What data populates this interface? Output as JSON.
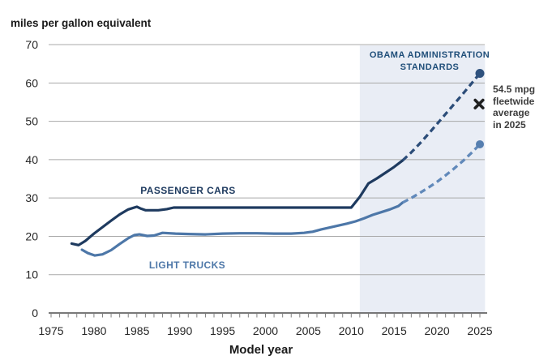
{
  "chart_data": {
    "type": "line",
    "title": "miles per gallon equivalent",
    "xlabel": "Model year",
    "xlim": [
      1975,
      2026
    ],
    "ylim": [
      0,
      70
    ],
    "x_ticks": [
      1975,
      1980,
      1985,
      1990,
      1995,
      2000,
      2005,
      2010,
      2015,
      2020,
      2025
    ],
    "x_minor_tick_step": 1,
    "y_ticks": [
      0,
      10,
      20,
      30,
      40,
      50,
      60,
      70
    ],
    "grid": "horizontal",
    "legend_position": "inline-labels",
    "colors": {
      "background": "#ffffff",
      "grid": "#a9a9a9",
      "axis": "#4d4d4d",
      "tick": "#7f7f7f",
      "annotation_marker": "#1f1f1f"
    },
    "shaded_region": {
      "x_start": 2011,
      "x_end": 2025.6,
      "color": "#e9edf5",
      "label_lines": [
        "OBAMA ADMINISTRATION",
        "STANDARDS"
      ]
    },
    "series": [
      {
        "name": "PASSENGER CARS",
        "color": "#1e3a5f",
        "dashed_color": "#2c4d79",
        "solid": [
          [
            1977.4,
            18.1
          ],
          [
            1978.2,
            17.7
          ],
          [
            1979,
            18.8
          ],
          [
            1980,
            20.7
          ],
          [
            1981,
            22.4
          ],
          [
            1982,
            24.1
          ],
          [
            1983,
            25.7
          ],
          [
            1984,
            27.0
          ],
          [
            1985,
            27.7
          ],
          [
            1985.5,
            27.2
          ],
          [
            1986,
            26.8
          ],
          [
            1987.5,
            26.8
          ],
          [
            1988.5,
            27.1
          ],
          [
            1989.3,
            27.5
          ],
          [
            2010,
            27.5
          ],
          [
            2011,
            30.3
          ],
          [
            2012,
            33.8
          ],
          [
            2013,
            35.1
          ],
          [
            2014,
            36.6
          ],
          [
            2015,
            38.1
          ],
          [
            2016,
            39.8
          ]
        ],
        "projected_dashed": [
          [
            2016,
            39.8
          ],
          [
            2017,
            41.9
          ],
          [
            2018,
            44.2
          ],
          [
            2019,
            46.7
          ],
          [
            2020,
            49.3
          ],
          [
            2021,
            51.9
          ],
          [
            2022,
            54.5
          ],
          [
            2023,
            57.1
          ],
          [
            2024,
            59.8
          ],
          [
            2025,
            62.5
          ]
        ],
        "endpoint": {
          "x": 2025,
          "y": 62.5
        }
      },
      {
        "name": "LIGHT TRUCKS",
        "color": "#4d77a8",
        "dashed_color": "#6189ba",
        "solid": [
          [
            1978.6,
            16.5
          ],
          [
            1979.3,
            15.6
          ],
          [
            1980.1,
            15.0
          ],
          [
            1981,
            15.3
          ],
          [
            1982,
            16.4
          ],
          [
            1983,
            18.0
          ],
          [
            1984,
            19.5
          ],
          [
            1984.7,
            20.3
          ],
          [
            1985.3,
            20.5
          ],
          [
            1986.2,
            20.1
          ],
          [
            1987,
            20.2
          ],
          [
            1988,
            20.9
          ],
          [
            1989.5,
            20.7
          ],
          [
            1991,
            20.6
          ],
          [
            1993,
            20.5
          ],
          [
            1995,
            20.7
          ],
          [
            1997,
            20.8
          ],
          [
            1999,
            20.8
          ],
          [
            2001,
            20.7
          ],
          [
            2003,
            20.7
          ],
          [
            2004.5,
            20.9
          ],
          [
            2005.5,
            21.2
          ],
          [
            2006.5,
            21.8
          ],
          [
            2007.5,
            22.3
          ],
          [
            2008.5,
            22.8
          ],
          [
            2009.5,
            23.3
          ],
          [
            2010.5,
            23.9
          ],
          [
            2011.5,
            24.7
          ],
          [
            2012.5,
            25.6
          ],
          [
            2013.5,
            26.3
          ],
          [
            2014.5,
            27.0
          ],
          [
            2015.5,
            27.9
          ],
          [
            2016,
            28.8
          ]
        ],
        "projected_dashed": [
          [
            2016,
            28.8
          ],
          [
            2017,
            30.0
          ],
          [
            2018,
            31.3
          ],
          [
            2019,
            32.7
          ],
          [
            2020,
            34.2
          ],
          [
            2021,
            35.9
          ],
          [
            2022,
            37.7
          ],
          [
            2023,
            39.6
          ],
          [
            2024,
            41.7
          ],
          [
            2025,
            44.0
          ]
        ],
        "endpoint": {
          "x": 2025,
          "y": 44.0
        }
      }
    ],
    "annotation": {
      "marker": "heavy-x",
      "x": 2025,
      "y": 54.5,
      "label_lines": [
        "54.5 mpge",
        "fleetwide",
        "average",
        "in 2025"
      ]
    }
  }
}
